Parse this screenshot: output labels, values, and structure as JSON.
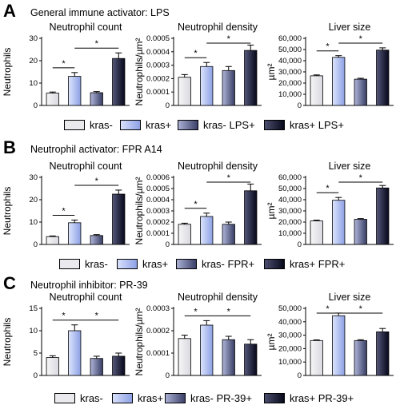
{
  "colors": {
    "kras_minus": "#e9e9ee",
    "kras_plus": "#a9b8ee",
    "kras_minus_treated": "#5a5f86",
    "kras_plus_treated": "#15162a"
  },
  "panels": [
    {
      "label": "A",
      "title": "General immune activator: LPS",
      "legend": [
        "kras-",
        "kras+",
        "kras- LPS+",
        "kras+ LPS+"
      ]
    },
    {
      "label": "B",
      "title": "Neutrophil activator: FPR A14",
      "legend": [
        "kras-",
        "kras+",
        "kras- FPR+",
        "kras+ FPR+"
      ]
    },
    {
      "label": "C",
      "title": "Neutrophil inhibitor: PR-39",
      "legend": [
        "kras-",
        "kras+",
        "kras- PR-39+",
        "kras+ PR-39+"
      ]
    }
  ],
  "chart_data": [
    {
      "panel": "A",
      "type": "bar",
      "title": "Neutrophil count",
      "ylabel": "Neutrophils",
      "ylim": [
        0,
        30
      ],
      "yticks": [
        "0",
        "10",
        "20",
        "30"
      ],
      "categories": [
        "kras-",
        "kras+",
        "kras- LPS+",
        "kras+ LPS+"
      ],
      "values": [
        5.5,
        13,
        5.7,
        21
      ],
      "errors": [
        0.5,
        1.7,
        0.5,
        2.5
      ],
      "significance": [
        {
          "from": 0,
          "to": 1,
          "label": "*"
        },
        {
          "from": 1,
          "to": 3,
          "label": "*"
        }
      ]
    },
    {
      "panel": "A",
      "type": "bar",
      "title": "Neutrophil density",
      "ylabel": "Neutrophils/µm²",
      "ylim": [
        0,
        0.0005
      ],
      "yticks": [
        "0",
        "0.0001",
        "0.0002",
        "0.0003",
        "0.0004",
        "0.0005"
      ],
      "categories": [
        "kras-",
        "kras+",
        "kras- LPS+",
        "kras+ LPS+"
      ],
      "values": [
        0.00021,
        0.00029,
        0.00026,
        0.00041
      ],
      "errors": [
        2e-05,
        3e-05,
        3e-05,
        4e-05
      ],
      "significance": [
        {
          "from": 0,
          "to": 1,
          "label": "*"
        },
        {
          "from": 1,
          "to": 3,
          "label": "*"
        }
      ]
    },
    {
      "panel": "A",
      "type": "bar",
      "title": "Liver size",
      "ylabel": "µm²",
      "ylim": [
        0,
        60000
      ],
      "yticks": [
        "0",
        "10,000",
        "20,000",
        "30,000",
        "40,000",
        "50,000",
        "60,000"
      ],
      "categories": [
        "kras-",
        "kras+",
        "kras- LPS+",
        "kras+ LPS+"
      ],
      "values": [
        26500,
        43000,
        23500,
        49500
      ],
      "errors": [
        800,
        1500,
        800,
        2000
      ],
      "significance": [
        {
          "from": 0,
          "to": 1,
          "label": "*"
        },
        {
          "from": 1,
          "to": 3,
          "label": "*"
        }
      ]
    },
    {
      "panel": "B",
      "type": "bar",
      "title": "Neutrophil count",
      "ylabel": "Neutrophils",
      "ylim": [
        0,
        30
      ],
      "yticks": [
        "0",
        "10",
        "20",
        "30"
      ],
      "categories": [
        "kras-",
        "kras+",
        "kras- FPR+",
        "kras+ FPR+"
      ],
      "values": [
        3.5,
        9.7,
        4,
        22.5
      ],
      "errors": [
        0.3,
        1.2,
        0.4,
        1.8
      ],
      "significance": [
        {
          "from": 0,
          "to": 1,
          "label": "*"
        },
        {
          "from": 1,
          "to": 3,
          "label": "*"
        }
      ]
    },
    {
      "panel": "B",
      "type": "bar",
      "title": "Neutrophil density",
      "ylabel": "Neutrophils/µm²",
      "ylim": [
        0,
        0.0006
      ],
      "yticks": [
        "0",
        "0.0001",
        "0.0002",
        "0.0003",
        "0.0004",
        "0.0005",
        "0.0006"
      ],
      "categories": [
        "kras-",
        "kras+",
        "kras- FPR+",
        "kras+ FPR+"
      ],
      "values": [
        0.00018,
        0.00025,
        0.00018,
        0.00048
      ],
      "errors": [
        1e-05,
        3e-05,
        2e-05,
        6e-05
      ],
      "significance": [
        {
          "from": 0,
          "to": 1,
          "label": "*"
        },
        {
          "from": 1,
          "to": 3,
          "label": "*"
        }
      ]
    },
    {
      "panel": "B",
      "type": "bar",
      "title": "Liver size",
      "ylabel": "µm²",
      "ylim": [
        0,
        60000
      ],
      "yticks": [
        "0",
        "10,000",
        "20,000",
        "30,000",
        "40,000",
        "50,000",
        "60,000"
      ],
      "categories": [
        "kras-",
        "kras+",
        "kras- FPR+",
        "kras+ FPR+"
      ],
      "values": [
        21000,
        39500,
        22500,
        50500
      ],
      "errors": [
        700,
        2500,
        600,
        2200
      ],
      "significance": [
        {
          "from": 0,
          "to": 1,
          "label": "*"
        },
        {
          "from": 1,
          "to": 3,
          "label": "*"
        }
      ]
    },
    {
      "panel": "C",
      "type": "bar",
      "title": "Neutrophil count",
      "ylabel": "Neutrophils",
      "ylim": [
        0,
        15
      ],
      "yticks": [
        "0",
        "5",
        "10",
        "15"
      ],
      "categories": [
        "kras-",
        "kras+",
        "kras- PR-39+",
        "kras+ PR-39+"
      ],
      "values": [
        4,
        10,
        3.8,
        4.3
      ],
      "errors": [
        0.4,
        1.3,
        0.5,
        0.7
      ],
      "significance": [
        {
          "from": 0,
          "to": 1,
          "label": "*"
        },
        {
          "from": 1,
          "to": 3,
          "label": "*"
        }
      ]
    },
    {
      "panel": "C",
      "type": "bar",
      "title": "Neutrophil density",
      "ylabel": "Neutrophils/µm²",
      "ylim": [
        0,
        0.0003
      ],
      "yticks": [
        "0",
        "0.0001",
        "0.0002",
        "0.0003"
      ],
      "categories": [
        "kras-",
        "kras+",
        "kras- PR-39+",
        "kras+ PR-39+"
      ],
      "values": [
        0.000165,
        0.000225,
        0.00016,
        0.00014
      ],
      "errors": [
        1.5e-05,
        2e-05,
        1.5e-05,
        2e-05
      ],
      "significance": [
        {
          "from": 0,
          "to": 1,
          "label": "*"
        },
        {
          "from": 1,
          "to": 3,
          "label": "*"
        }
      ]
    },
    {
      "panel": "C",
      "type": "bar",
      "title": "Liver size",
      "ylabel": "µm²",
      "ylim": [
        0,
        50000
      ],
      "yticks": [
        "0",
        "10,000",
        "20,000",
        "30,000",
        "40,000",
        "50,000"
      ],
      "categories": [
        "kras-",
        "kras+",
        "kras- PR-39+",
        "kras+ PR-39+"
      ],
      "values": [
        26000,
        44500,
        26000,
        32500
      ],
      "errors": [
        500,
        2000,
        600,
        2500
      ],
      "significance": [
        {
          "from": 0,
          "to": 1,
          "label": "*"
        },
        {
          "from": 1,
          "to": 3,
          "label": "*"
        }
      ]
    }
  ]
}
